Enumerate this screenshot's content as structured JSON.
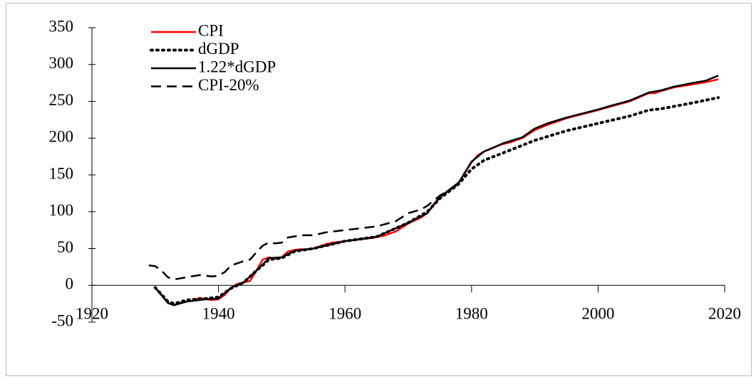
{
  "chart_data": {
    "type": "line",
    "xlim": [
      1920,
      2020
    ],
    "xticks": [
      1920,
      1940,
      1960,
      1980,
      2000,
      2020
    ],
    "ylim": [
      -50,
      350
    ],
    "yticks": [
      -50,
      0,
      50,
      100,
      150,
      200,
      250,
      300,
      350
    ],
    "legend": "upper left",
    "series": [
      {
        "name": "CPI",
        "color": "#ff0000",
        "dash": "solid",
        "x": [
          1930,
          1931,
          1932,
          1933,
          1934,
          1935,
          1936,
          1937,
          1938,
          1939,
          1940,
          1941,
          1942,
          1943,
          1944,
          1945,
          1946,
          1947,
          1948,
          1949,
          1950,
          1951,
          1952,
          1953,
          1954,
          1955,
          1956,
          1957,
          1958,
          1959,
          1960,
          1962,
          1964,
          1966,
          1968,
          1970,
          1972,
          1973,
          1974,
          1975,
          1976,
          1977,
          1978,
          1979,
          1980,
          1981,
          1982,
          1983,
          1984,
          1985,
          1986,
          1988,
          1990,
          1992,
          1995,
          2000,
          2002,
          2005,
          2008,
          2009,
          2010,
          2012,
          2015,
          2017,
          2019
        ],
        "values": [
          -3,
          -13,
          -24,
          -27,
          -24,
          -22,
          -21,
          -17,
          -19,
          -20,
          -19,
          -13,
          -3,
          2,
          4,
          6,
          20,
          35,
          38,
          36,
          38,
          46,
          48,
          49,
          49,
          50,
          53,
          56,
          58,
          59,
          60,
          62,
          64,
          67,
          73,
          84,
          92,
          98,
          110,
          120,
          126,
          132,
          140,
          153,
          167,
          177,
          182,
          185,
          189,
          192,
          194,
          200,
          211,
          218,
          227,
          238,
          243,
          250,
          261,
          261,
          264,
          269,
          273,
          276,
          280
        ]
      },
      {
        "name": "dGDP",
        "color": "#000000",
        "dash": "dotted",
        "x": [
          1930,
          1932,
          1933,
          1935,
          1938,
          1940,
          1942,
          1944,
          1946,
          1948,
          1950,
          1952,
          1955,
          1960,
          1965,
          1970,
          1973,
          1975,
          1978,
          1980,
          1982,
          1985,
          1990,
          1995,
          2000,
          2005,
          2008,
          2010,
          2015,
          2019
        ],
        "values": [
          -3,
          -22,
          -25,
          -20,
          -18,
          -16,
          -4,
          4,
          20,
          35,
          37,
          46,
          50,
          60,
          66,
          85,
          100,
          118,
          138,
          158,
          170,
          180,
          197,
          210,
          220,
          230,
          238,
          240,
          248,
          255
        ]
      },
      {
        "name": "1.22*dGDP",
        "color": "#000000",
        "dash": "solid",
        "x": [
          1930,
          1932,
          1933,
          1935,
          1938,
          1940,
          1942,
          1944,
          1946,
          1948,
          1950,
          1952,
          1955,
          1960,
          1965,
          1970,
          1973,
          1975,
          1978,
          1980,
          1982,
          1985,
          1988,
          1990,
          1992,
          1995,
          2000,
          2002,
          2005,
          2008,
          2010,
          2012,
          2015,
          2017,
          2019
        ],
        "values": [
          -3,
          -24,
          -27,
          -22,
          -19,
          -18,
          -3,
          4,
          20,
          37,
          38,
          47,
          50,
          60,
          66,
          85,
          98,
          120,
          140,
          168,
          182,
          193,
          201,
          213,
          220,
          228,
          239,
          244,
          251,
          262,
          265,
          270,
          275,
          278,
          285
        ]
      },
      {
        "name": "CPI-20%",
        "color": "#000000",
        "dash": "dashed",
        "x": [
          1929,
          1930,
          1931,
          1932,
          1933,
          1935,
          1937,
          1939,
          1940,
          1941,
          1942,
          1944,
          1945,
          1946,
          1947,
          1948,
          1949,
          1950,
          1951,
          1953,
          1955,
          1957,
          1960,
          1965,
          1968,
          1970,
          1972,
          1973,
          1975,
          1978
        ],
        "values": [
          27,
          26,
          20,
          11,
          8,
          11,
          14,
          12,
          13,
          18,
          27,
          33,
          35,
          45,
          54,
          58,
          57,
          58,
          65,
          68,
          68,
          72,
          75,
          80,
          87,
          98,
          103,
          108,
          122,
          138
        ]
      }
    ]
  }
}
